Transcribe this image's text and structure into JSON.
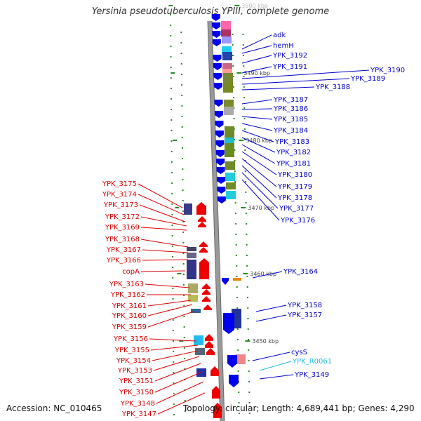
{
  "title": "Yersinia pseudotuberculosis YPIII, complete genome",
  "footer": {
    "accession": "Accession: NC_010465",
    "topology": "Topology: circular; Length: 4,689,441 bp; Genes: 4,290"
  },
  "colors": {
    "right_label": "#0000cc",
    "left_label": "#dd0000",
    "rna_label": "#22bbdd",
    "forward_arrow": "#ee0000",
    "reverse_arrow": "#0000ee",
    "scale_mark": "#2a8a2a"
  },
  "ruler_labels": [
    {
      "id": "3500",
      "text": "3500 kbp",
      "faded": true
    },
    {
      "id": "3490",
      "text": "3490 kbp"
    },
    {
      "id": "3480",
      "text": "3480 kbp"
    },
    {
      "id": "3470",
      "text": "3470 kbp"
    },
    {
      "id": "3460",
      "text": "3460 kbp"
    },
    {
      "id": "3450",
      "text": "3450 kbp"
    }
  ],
  "right_genes": [
    {
      "id": "adk",
      "label": "adk"
    },
    {
      "id": "hemh",
      "label": "hemH"
    },
    {
      "id": "ypk3192",
      "label": "YPK_3192"
    },
    {
      "id": "ypk3191",
      "label": "YPK_3191"
    },
    {
      "id": "ypk3190",
      "label": "YPK_3190"
    },
    {
      "id": "ypk3189",
      "label": "YPK_3189"
    },
    {
      "id": "ypk3188",
      "label": "YPK_3188"
    },
    {
      "id": "ypk3187",
      "label": "YPK_3187"
    },
    {
      "id": "ypk3186",
      "label": "YPK_3186"
    },
    {
      "id": "ypk3185",
      "label": "YPK_3185"
    },
    {
      "id": "ypk3184",
      "label": "YPK_3184"
    },
    {
      "id": "ypk3183",
      "label": "YPK_3183"
    },
    {
      "id": "ypk3182",
      "label": "YPK_3182"
    },
    {
      "id": "ypk3181",
      "label": "YPK_3181"
    },
    {
      "id": "ypk3180",
      "label": "YPK_3180"
    },
    {
      "id": "ypk3179",
      "label": "YPK_3179"
    },
    {
      "id": "ypk3178",
      "label": "YPK_3178"
    },
    {
      "id": "ypk3177",
      "label": "YPK_3177"
    },
    {
      "id": "ypk3176",
      "label": "YPK_3176"
    },
    {
      "id": "ypk3164",
      "label": "YPK_3164"
    },
    {
      "id": "ypk3158",
      "label": "YPK_3158"
    },
    {
      "id": "ypk3157",
      "label": "YPK_3157"
    },
    {
      "id": "cyss",
      "label": "cysS"
    },
    {
      "id": "ypkr0061",
      "label": "YPK_R0061",
      "rna": true
    },
    {
      "id": "ypk3149",
      "label": "YPK_3149"
    }
  ],
  "left_genes": [
    {
      "id": "ypk3175",
      "label": "YPK_3175"
    },
    {
      "id": "ypk3174",
      "label": "YPK_3174"
    },
    {
      "id": "ypk3173",
      "label": "YPK_3173"
    },
    {
      "id": "ypk3172",
      "label": "YPK_3172"
    },
    {
      "id": "ypk3169",
      "label": "YPK_3169"
    },
    {
      "id": "ypk3168",
      "label": "YPK_3168"
    },
    {
      "id": "ypk3167",
      "label": "YPK_3167"
    },
    {
      "id": "ypk3166",
      "label": "YPK_3166"
    },
    {
      "id": "copa",
      "label": "copA"
    },
    {
      "id": "ypk3163",
      "label": "YPK_3163"
    },
    {
      "id": "ypk3162",
      "label": "YPK_3162"
    },
    {
      "id": "ypk3161",
      "label": "YPK_3161"
    },
    {
      "id": "ypk3160",
      "label": "YPK_3160"
    },
    {
      "id": "ypk3159",
      "label": "YPK_3159"
    },
    {
      "id": "ypk3156",
      "label": "YPK_3156"
    },
    {
      "id": "ypk3155",
      "label": "YPK_3155"
    },
    {
      "id": "ypk3154",
      "label": "YPK_3154"
    },
    {
      "id": "ypk3153",
      "label": "YPK_3153"
    },
    {
      "id": "ypk3151",
      "label": "YPK_3151"
    },
    {
      "id": "ypk3150",
      "label": "YPK_3150"
    },
    {
      "id": "ypk3148",
      "label": "YPK_3148"
    },
    {
      "id": "ypk3147",
      "label": "YPK_3147"
    }
  ]
}
